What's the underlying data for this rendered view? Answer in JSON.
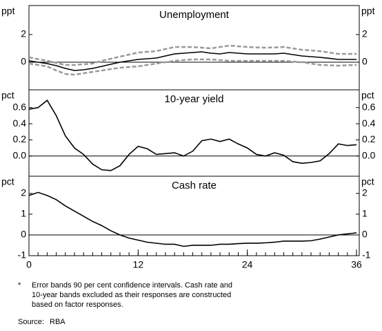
{
  "chart_data": [
    {
      "type": "line",
      "title": "Unemployment",
      "unit": "ppt",
      "x": [
        0,
        1,
        2,
        3,
        4,
        5,
        6,
        7,
        8,
        9,
        10,
        11,
        12,
        13,
        14,
        15,
        16,
        17,
        18,
        19,
        20,
        21,
        22,
        23,
        24,
        25,
        26,
        27,
        28,
        29,
        30,
        31,
        32,
        33,
        34,
        35,
        36
      ],
      "series": [
        {
          "color": "#999999",
          "dashed": true,
          "values": [
            0.35,
            0.22,
            0.1,
            -0.05,
            -0.2,
            -0.2,
            -0.15,
            -0.1,
            0.1,
            0.25,
            0.4,
            0.55,
            0.7,
            0.75,
            0.8,
            0.95,
            1.1,
            1.1,
            1.1,
            1.05,
            1.0,
            1.1,
            1.2,
            1.15,
            1.1,
            1.07,
            1.05,
            1.07,
            1.1,
            1.0,
            0.9,
            0.85,
            0.8,
            0.7,
            0.6,
            0.6,
            0.6
          ]
        },
        {
          "color": "#999999",
          "dashed": true,
          "values": [
            -0.1,
            -0.2,
            -0.3,
            -0.6,
            -0.85,
            -0.9,
            -0.8,
            -0.7,
            -0.6,
            -0.5,
            -0.4,
            -0.35,
            -0.3,
            -0.2,
            -0.1,
            0.0,
            0.1,
            0.15,
            0.2,
            0.2,
            0.2,
            0.15,
            0.1,
            0.1,
            0.1,
            0.1,
            0.1,
            0.1,
            0.1,
            0.05,
            0.0,
            -0.1,
            -0.2,
            -0.22,
            -0.25,
            -0.22,
            -0.2
          ]
        },
        {
          "color": "#000000",
          "dashed": false,
          "values": [
            0.1,
            0.0,
            -0.1,
            -0.25,
            -0.45,
            -0.6,
            -0.55,
            -0.45,
            -0.3,
            -0.15,
            0.0,
            0.1,
            0.2,
            0.25,
            0.3,
            0.45,
            0.6,
            0.65,
            0.7,
            0.75,
            0.65,
            0.6,
            0.7,
            0.65,
            0.6,
            0.6,
            0.6,
            0.6,
            0.65,
            0.55,
            0.45,
            0.4,
            0.35,
            0.28,
            0.2,
            0.2,
            0.2
          ]
        }
      ],
      "xlim": [
        0,
        36.3
      ],
      "ylim": [
        -2,
        4.1
      ],
      "yticks": [
        0,
        2
      ]
    },
    {
      "type": "line",
      "title": "10-year yield",
      "unit": "pct",
      "x": [
        0,
        1,
        2,
        3,
        4,
        5,
        6,
        7,
        8,
        9,
        10,
        11,
        12,
        13,
        14,
        15,
        16,
        17,
        18,
        19,
        20,
        21,
        22,
        23,
        24,
        25,
        26,
        27,
        28,
        29,
        30,
        31,
        32,
        33,
        34,
        35,
        36
      ],
      "series": [
        {
          "color": "#000000",
          "dashed": false,
          "values": [
            0.58,
            0.6,
            0.69,
            0.5,
            0.25,
            0.1,
            0.02,
            -0.1,
            -0.17,
            -0.18,
            -0.12,
            0.02,
            0.12,
            0.09,
            0.02,
            0.03,
            0.04,
            0.0,
            0.06,
            0.19,
            0.21,
            0.18,
            0.21,
            0.15,
            0.1,
            0.02,
            0.0,
            0.04,
            0.01,
            -0.07,
            -0.09,
            -0.08,
            -0.06,
            0.03,
            0.15,
            0.13,
            0.14
          ]
        }
      ],
      "xlim": [
        0,
        36.3
      ],
      "ylim": [
        -0.25,
        0.82
      ],
      "yticks": [
        {
          "value": 0,
          "label": "0.0"
        },
        {
          "value": 0.2,
          "label": "0.2"
        },
        {
          "value": 0.4,
          "label": "0.4"
        },
        {
          "value": 0.6,
          "label": "0.6"
        }
      ]
    },
    {
      "type": "line",
      "title": "Cash rate",
      "unit": "pct",
      "x": [
        0,
        1,
        2,
        3,
        4,
        5,
        6,
        7,
        8,
        9,
        10,
        11,
        12,
        13,
        14,
        15,
        16,
        17,
        18,
        19,
        20,
        21,
        22,
        23,
        24,
        25,
        26,
        27,
        28,
        29,
        30,
        31,
        32,
        33,
        34,
        35,
        36
      ],
      "series": [
        {
          "color": "#000000",
          "dashed": false,
          "values": [
            1.9,
            2.05,
            1.9,
            1.7,
            1.4,
            1.15,
            0.9,
            0.65,
            0.45,
            0.2,
            0.0,
            -0.15,
            -0.25,
            -0.35,
            -0.4,
            -0.45,
            -0.45,
            -0.55,
            -0.5,
            -0.5,
            -0.5,
            -0.45,
            -0.45,
            -0.42,
            -0.4,
            -0.4,
            -0.38,
            -0.35,
            -0.3,
            -0.3,
            -0.3,
            -0.28,
            -0.2,
            -0.1,
            0.0,
            0.05,
            0.1
          ]
        }
      ],
      "xlim": [
        0,
        36.3
      ],
      "ylim": [
        -1,
        2.83
      ],
      "yticks": [
        -1,
        0,
        1,
        2
      ],
      "xticks": [
        0,
        12,
        24,
        36
      ]
    }
  ],
  "footnote": {
    "marker": "*",
    "text": "Error bands 90 per cent confidence intervals. Cash rate and 10-year bands excluded as their responses are constructed based on factor responses.",
    "source_label": "Source:",
    "source": "RBA"
  }
}
